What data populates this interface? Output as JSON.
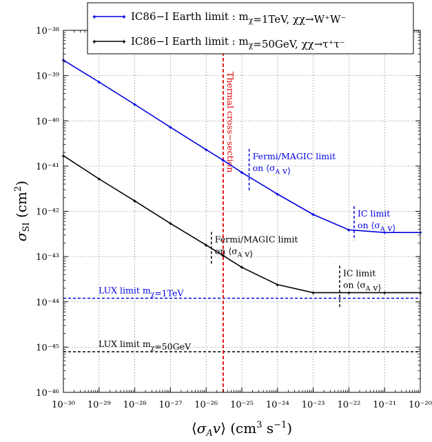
{
  "chart_data": {
    "type": "line",
    "xscale": "log",
    "yscale": "log",
    "xlim": [
      1e-30,
      1e-20
    ],
    "ylim": [
      1e-46,
      1e-38
    ],
    "grid": true,
    "legend_placement": "top",
    "xlabel": "⟨σ_A v⟩ (cm³ s⁻¹)",
    "ylabel": "σ_SI (cm²)",
    "x_tick_labels": [
      "10⁻³⁰",
      "10⁻²⁹",
      "10⁻²⁸",
      "10⁻²⁷",
      "10⁻²⁶",
      "10⁻²⁵",
      "10⁻²⁴",
      "10⁻²³",
      "10⁻²²",
      "10⁻²¹",
      "10⁻²⁰"
    ],
    "y_tick_labels": [
      "10⁻⁴⁶",
      "10⁻⁴⁵",
      "10⁻⁴⁴",
      "10⁻⁴³",
      "10⁻⁴²",
      "10⁻⁴¹",
      "10⁻⁴⁰",
      "10⁻³⁹",
      "10⁻³⁸"
    ],
    "series": [
      {
        "name": "IC86−I Earth limit : m_χ=1TeV, χχ→W⁺W⁻",
        "color": "#0000e0",
        "x": [
          1e-30,
          1e-29,
          1e-28,
          1e-27,
          1e-26,
          3e-26,
          1e-25,
          1e-24,
          1e-23,
          1e-22,
          1e-21,
          1e-20
        ],
        "y": [
          2.2e-39,
          7.2e-40,
          2.3e-40,
          7.2e-41,
          2.3e-41,
          1.35e-41,
          7.2e-42,
          2.4e-42,
          8.5e-43,
          3.9e-43,
          3.4e-43,
          3.4e-43
        ]
      },
      {
        "name": "IC86−I Earth limit : m_χ=50GeV, χχ→τ⁺τ⁻",
        "color": "#000000",
        "x": [
          1e-30,
          1e-29,
          1e-28,
          1e-27,
          1e-26,
          3e-26,
          1e-25,
          1e-24,
          1e-23,
          1e-22,
          1e-21,
          1e-20
        ],
        "y": [
          1.7e-41,
          5.2e-42,
          1.7e-42,
          5.4e-43,
          1.8e-43,
          1.05e-43,
          5.8e-44,
          2.4e-44,
          1.6e-44,
          1.6e-44,
          1.6e-44,
          1.6e-44
        ]
      }
    ],
    "horizontal_lines": [
      {
        "label": "LUX limit m_χ=1TeV",
        "y": 1.2e-44,
        "color": "#0000e0"
      },
      {
        "label": "LUX limit m_χ=50GeV",
        "y": 7.9e-46,
        "color": "#000000"
      }
    ],
    "thermal_line": {
      "label": "Thermal cross−section",
      "x": 3e-26,
      "color": "#e00000"
    },
    "annotations": [
      {
        "lines": [
          "Fermi/MAGIC limit",
          "on ⟨σ_A v⟩"
        ],
        "x": 1.6e-25,
        "y_min": 2.8e-42,
        "y_max": 2.4e-41,
        "color": "#0000e0"
      },
      {
        "lines": [
          "IC limit",
          "on ⟨σ_A v⟩"
        ],
        "x": 1.4e-22,
        "y_min": 2.3e-43,
        "y_max": 1.3e-42,
        "color": "#0000e0"
      },
      {
        "lines": [
          "Fermi/MAGIC limit",
          "on ⟨σ_A v⟩"
        ],
        "x": 1.4e-26,
        "y_min": 6.5e-44,
        "y_max": 3.5e-43,
        "color": "#000000"
      },
      {
        "lines": [
          "IC limit",
          "on ⟨σ_A v⟩"
        ],
        "x": 5.5e-23,
        "y_min": 7.5e-45,
        "y_max": 6.3e-44,
        "color": "#000000"
      }
    ]
  }
}
